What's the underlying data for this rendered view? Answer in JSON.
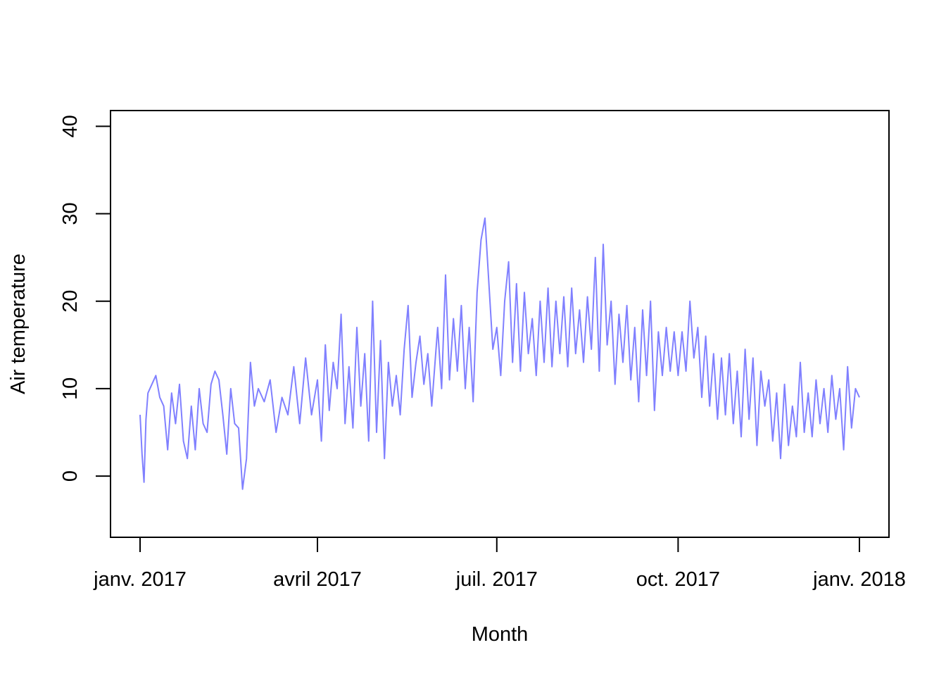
{
  "chart_data": {
    "type": "line",
    "title": "",
    "xlabel": "Month",
    "ylabel": "Air temperature",
    "xlim": [
      "2017-01-01",
      "2018-01-01"
    ],
    "ylim": [
      -7,
      41.8
    ],
    "y_ticks": [
      0,
      10,
      20,
      30,
      40
    ],
    "x_ticks": [
      {
        "date": "2017-01-01",
        "label": "janv. 2017"
      },
      {
        "date": "2017-04-01",
        "label": "avril 2017"
      },
      {
        "date": "2017-07-01",
        "label": "juil. 2017"
      },
      {
        "date": "2017-10-01",
        "label": "oct. 2017"
      },
      {
        "date": "2018-01-01",
        "label": "janv. 2018"
      }
    ],
    "grid": false,
    "legend": "none",
    "series": [
      {
        "color": "#8080ff",
        "points": [
          [
            "2017-01-01",
            7.0
          ],
          [
            "2017-01-02",
            2.5
          ],
          [
            "2017-01-03",
            -0.7
          ],
          [
            "2017-01-04",
            6.5
          ],
          [
            "2017-01-05",
            9.5
          ],
          [
            "2017-01-07",
            10.5
          ],
          [
            "2017-01-09",
            11.5
          ],
          [
            "2017-01-11",
            9.0
          ],
          [
            "2017-01-13",
            8.0
          ],
          [
            "2017-01-15",
            3.0
          ],
          [
            "2017-01-17",
            9.5
          ],
          [
            "2017-01-19",
            6.0
          ],
          [
            "2017-01-21",
            10.5
          ],
          [
            "2017-01-23",
            4.0
          ],
          [
            "2017-01-25",
            2.0
          ],
          [
            "2017-01-27",
            8.0
          ],
          [
            "2017-01-29",
            3.0
          ],
          [
            "2017-01-31",
            10.0
          ],
          [
            "2017-02-02",
            6.0
          ],
          [
            "2017-02-04",
            5.0
          ],
          [
            "2017-02-06",
            10.5
          ],
          [
            "2017-02-08",
            12.0
          ],
          [
            "2017-02-10",
            11.0
          ],
          [
            "2017-02-12",
            7.0
          ],
          [
            "2017-02-14",
            2.5
          ],
          [
            "2017-02-16",
            10.0
          ],
          [
            "2017-02-18",
            6.0
          ],
          [
            "2017-02-20",
            5.5
          ],
          [
            "2017-02-22",
            -1.5
          ],
          [
            "2017-02-24",
            2.0
          ],
          [
            "2017-02-26",
            13.0
          ],
          [
            "2017-02-28",
            8.0
          ],
          [
            "2017-03-02",
            10.0
          ],
          [
            "2017-03-05",
            8.5
          ],
          [
            "2017-03-08",
            11.0
          ],
          [
            "2017-03-11",
            5.0
          ],
          [
            "2017-03-14",
            9.0
          ],
          [
            "2017-03-17",
            7.0
          ],
          [
            "2017-03-20",
            12.5
          ],
          [
            "2017-03-23",
            6.0
          ],
          [
            "2017-03-26",
            13.5
          ],
          [
            "2017-03-29",
            7.0
          ],
          [
            "2017-04-01",
            11.0
          ],
          [
            "2017-04-03",
            4.0
          ],
          [
            "2017-04-05",
            15.0
          ],
          [
            "2017-04-07",
            7.5
          ],
          [
            "2017-04-09",
            13.0
          ],
          [
            "2017-04-11",
            10.0
          ],
          [
            "2017-04-13",
            18.5
          ],
          [
            "2017-04-15",
            6.0
          ],
          [
            "2017-04-17",
            12.5
          ],
          [
            "2017-04-19",
            5.5
          ],
          [
            "2017-04-21",
            17.0
          ],
          [
            "2017-04-23",
            8.0
          ],
          [
            "2017-04-25",
            14.0
          ],
          [
            "2017-04-27",
            4.0
          ],
          [
            "2017-04-29",
            20.0
          ],
          [
            "2017-05-01",
            5.0
          ],
          [
            "2017-05-03",
            15.5
          ],
          [
            "2017-05-05",
            2.0
          ],
          [
            "2017-05-07",
            13.0
          ],
          [
            "2017-05-09",
            8.0
          ],
          [
            "2017-05-11",
            11.5
          ],
          [
            "2017-05-13",
            7.0
          ],
          [
            "2017-05-15",
            14.5
          ],
          [
            "2017-05-17",
            19.5
          ],
          [
            "2017-05-19",
            9.0
          ],
          [
            "2017-05-21",
            13.0
          ],
          [
            "2017-05-23",
            16.0
          ],
          [
            "2017-05-25",
            10.5
          ],
          [
            "2017-05-27",
            14.0
          ],
          [
            "2017-05-29",
            8.0
          ],
          [
            "2017-06-01",
            17.0
          ],
          [
            "2017-06-03",
            10.0
          ],
          [
            "2017-06-05",
            23.0
          ],
          [
            "2017-06-07",
            11.0
          ],
          [
            "2017-06-09",
            18.0
          ],
          [
            "2017-06-11",
            12.0
          ],
          [
            "2017-06-13",
            19.5
          ],
          [
            "2017-06-15",
            10.0
          ],
          [
            "2017-06-17",
            17.0
          ],
          [
            "2017-06-19",
            8.5
          ],
          [
            "2017-06-21",
            21.0
          ],
          [
            "2017-06-23",
            27.0
          ],
          [
            "2017-06-25",
            29.5
          ],
          [
            "2017-06-27",
            22.0
          ],
          [
            "2017-06-29",
            14.5
          ],
          [
            "2017-07-01",
            17.0
          ],
          [
            "2017-07-03",
            11.5
          ],
          [
            "2017-07-05",
            20.0
          ],
          [
            "2017-07-07",
            24.5
          ],
          [
            "2017-07-09",
            13.0
          ],
          [
            "2017-07-11",
            22.0
          ],
          [
            "2017-07-13",
            12.0
          ],
          [
            "2017-07-15",
            21.0
          ],
          [
            "2017-07-17",
            14.0
          ],
          [
            "2017-07-19",
            18.0
          ],
          [
            "2017-07-21",
            11.5
          ],
          [
            "2017-07-23",
            20.0
          ],
          [
            "2017-07-25",
            13.0
          ],
          [
            "2017-07-27",
            21.5
          ],
          [
            "2017-07-29",
            12.5
          ],
          [
            "2017-07-31",
            20.0
          ],
          [
            "2017-08-02",
            14.0
          ],
          [
            "2017-08-04",
            20.5
          ],
          [
            "2017-08-06",
            12.5
          ],
          [
            "2017-08-08",
            21.5
          ],
          [
            "2017-08-10",
            14.0
          ],
          [
            "2017-08-12",
            19.0
          ],
          [
            "2017-08-14",
            13.0
          ],
          [
            "2017-08-16",
            20.5
          ],
          [
            "2017-08-18",
            14.5
          ],
          [
            "2017-08-20",
            25.0
          ],
          [
            "2017-08-22",
            12.0
          ],
          [
            "2017-08-24",
            26.5
          ],
          [
            "2017-08-26",
            15.0
          ],
          [
            "2017-08-28",
            20.0
          ],
          [
            "2017-08-30",
            10.5
          ],
          [
            "2017-09-01",
            18.5
          ],
          [
            "2017-09-03",
            13.0
          ],
          [
            "2017-09-05",
            19.5
          ],
          [
            "2017-09-07",
            11.0
          ],
          [
            "2017-09-09",
            17.0
          ],
          [
            "2017-09-11",
            8.5
          ],
          [
            "2017-09-13",
            19.0
          ],
          [
            "2017-09-15",
            11.5
          ],
          [
            "2017-09-17",
            20.0
          ],
          [
            "2017-09-19",
            7.5
          ],
          [
            "2017-09-21",
            16.5
          ],
          [
            "2017-09-23",
            11.5
          ],
          [
            "2017-09-25",
            17.0
          ],
          [
            "2017-09-27",
            12.0
          ],
          [
            "2017-09-29",
            16.5
          ],
          [
            "2017-10-01",
            11.5
          ],
          [
            "2017-10-03",
            16.5
          ],
          [
            "2017-10-05",
            12.0
          ],
          [
            "2017-10-07",
            20.0
          ],
          [
            "2017-10-09",
            13.5
          ],
          [
            "2017-10-11",
            17.0
          ],
          [
            "2017-10-13",
            9.0
          ],
          [
            "2017-10-15",
            16.0
          ],
          [
            "2017-10-17",
            8.0
          ],
          [
            "2017-10-19",
            14.0
          ],
          [
            "2017-10-21",
            6.5
          ],
          [
            "2017-10-23",
            13.5
          ],
          [
            "2017-10-25",
            7.0
          ],
          [
            "2017-10-27",
            14.0
          ],
          [
            "2017-10-29",
            6.0
          ],
          [
            "2017-10-31",
            12.0
          ],
          [
            "2017-11-02",
            4.5
          ],
          [
            "2017-11-04",
            14.5
          ],
          [
            "2017-11-06",
            6.5
          ],
          [
            "2017-11-08",
            13.5
          ],
          [
            "2017-11-10",
            3.5
          ],
          [
            "2017-11-12",
            12.0
          ],
          [
            "2017-11-14",
            8.0
          ],
          [
            "2017-11-16",
            11.0
          ],
          [
            "2017-11-18",
            4.0
          ],
          [
            "2017-11-20",
            9.5
          ],
          [
            "2017-11-22",
            2.0
          ],
          [
            "2017-11-24",
            10.5
          ],
          [
            "2017-11-26",
            3.5
          ],
          [
            "2017-11-28",
            8.0
          ],
          [
            "2017-11-30",
            4.5
          ],
          [
            "2017-12-02",
            13.0
          ],
          [
            "2017-12-04",
            5.0
          ],
          [
            "2017-12-06",
            9.5
          ],
          [
            "2017-12-08",
            4.5
          ],
          [
            "2017-12-10",
            11.0
          ],
          [
            "2017-12-12",
            6.0
          ],
          [
            "2017-12-14",
            10.0
          ],
          [
            "2017-12-16",
            5.0
          ],
          [
            "2017-12-18",
            11.5
          ],
          [
            "2017-12-20",
            6.5
          ],
          [
            "2017-12-22",
            10.0
          ],
          [
            "2017-12-24",
            3.0
          ],
          [
            "2017-12-26",
            12.5
          ],
          [
            "2017-12-28",
            5.5
          ],
          [
            "2017-12-30",
            10.0
          ],
          [
            "2018-01-01",
            9.0
          ]
        ]
      }
    ]
  }
}
